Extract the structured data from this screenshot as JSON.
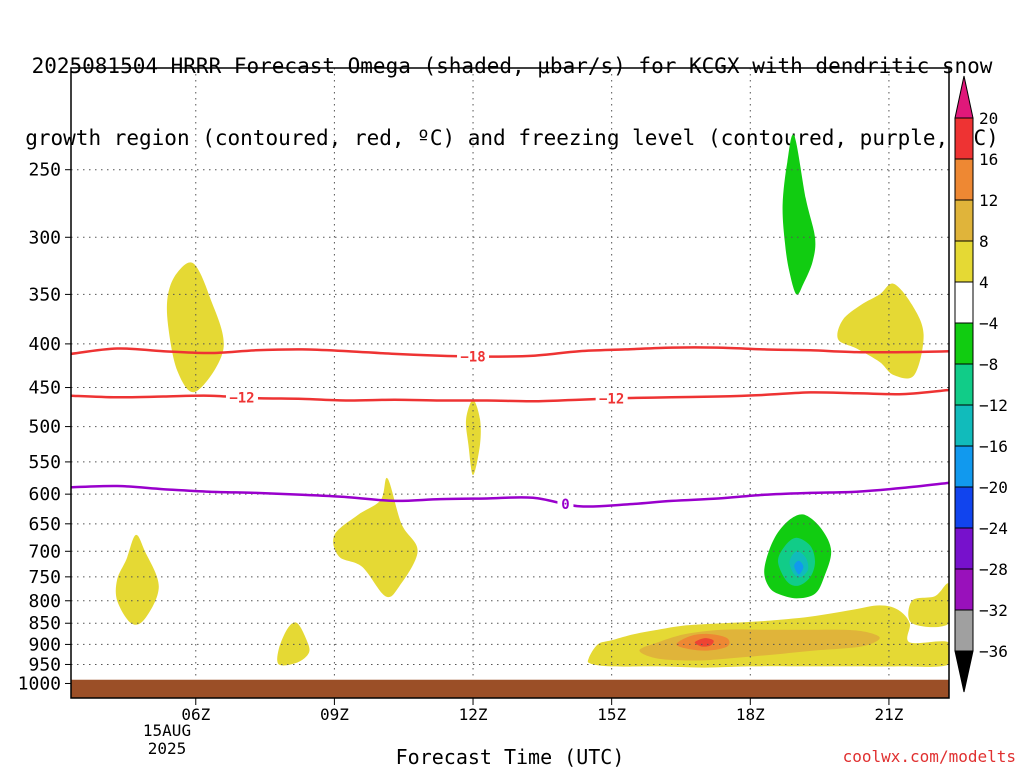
{
  "title_lines": [
    "2025081504 HRRR Forecast Omega (shaded, μbar/s) for KCGX with dendritic snow",
    "growth region (contoured, red, ºC) and freezing level (contoured, purple, ºC)"
  ],
  "watermark": "coolwx.com/modelts",
  "chart_data": {
    "type": "contour",
    "xlabel": "Forecast Time (UTC)",
    "ylabel": "",
    "date_label": [
      "15AUG",
      "2025"
    ],
    "x_range_hours_utc": [
      3.3,
      22.3
    ],
    "x_ticks": [
      {
        "hour": 6,
        "label": "06Z"
      },
      {
        "hour": 9,
        "label": "09Z"
      },
      {
        "hour": 12,
        "label": "12Z"
      },
      {
        "hour": 15,
        "label": "15Z"
      },
      {
        "hour": 18,
        "label": "18Z"
      },
      {
        "hour": 21,
        "label": "21Z"
      }
    ],
    "y_scale": "pressure (log-like, inverted)",
    "y_range_hpa": [
      1040,
      190
    ],
    "y_ticks": [
      250,
      300,
      350,
      400,
      450,
      500,
      550,
      600,
      650,
      700,
      750,
      800,
      850,
      900,
      950,
      1000
    ],
    "grid": true,
    "ground_level_hpa": 990,
    "ground_color": "#9b4f27",
    "contours": [
      {
        "name": "-18",
        "color": "#ee3333",
        "label": "-18",
        "points": [
          [
            3.3,
            411
          ],
          [
            4.3,
            405
          ],
          [
            5.3,
            408
          ],
          [
            6.3,
            410
          ],
          [
            7.3,
            407
          ],
          [
            8.3,
            406
          ],
          [
            9.3,
            408
          ],
          [
            10.3,
            411
          ],
          [
            11.3,
            413
          ],
          [
            12.3,
            414
          ],
          [
            13.3,
            413
          ],
          [
            14.3,
            408
          ],
          [
            15.3,
            406
          ],
          [
            16.3,
            404
          ],
          [
            17.3,
            404
          ],
          [
            18.3,
            406
          ],
          [
            19.3,
            407
          ],
          [
            20.3,
            409
          ],
          [
            21.3,
            409
          ],
          [
            22.3,
            408
          ]
        ],
        "label_hour": 12
      },
      {
        "name": "-12",
        "color": "#ee3333",
        "label": "-12",
        "points": [
          [
            3.3,
            460
          ],
          [
            4.3,
            462
          ],
          [
            5.3,
            461
          ],
          [
            6.3,
            460
          ],
          [
            7.3,
            463
          ],
          [
            8.3,
            464
          ],
          [
            9.3,
            466
          ],
          [
            10.3,
            465
          ],
          [
            11.3,
            466
          ],
          [
            12.3,
            466
          ],
          [
            13.3,
            467
          ],
          [
            14.3,
            465
          ],
          [
            15.3,
            463
          ],
          [
            16.3,
            462
          ],
          [
            17.3,
            461
          ],
          [
            18.3,
            459
          ],
          [
            19.3,
            456
          ],
          [
            20.3,
            457
          ],
          [
            21.3,
            458
          ],
          [
            22.3,
            453
          ]
        ],
        "label_hours": [
          7,
          15
        ]
      },
      {
        "name": "0",
        "color": "#9900cc",
        "label": "0",
        "points": [
          [
            3.3,
            589
          ],
          [
            4.3,
            587
          ],
          [
            5.3,
            592
          ],
          [
            6.3,
            596
          ],
          [
            7.3,
            598
          ],
          [
            8.3,
            601
          ],
          [
            9.3,
            605
          ],
          [
            10.3,
            611
          ],
          [
            11.3,
            608
          ],
          [
            12.3,
            607
          ],
          [
            13.3,
            606
          ],
          [
            14.3,
            620
          ],
          [
            15.3,
            617
          ],
          [
            16.3,
            611
          ],
          [
            17.3,
            607
          ],
          [
            18.3,
            601
          ],
          [
            19.3,
            598
          ],
          [
            20.3,
            596
          ],
          [
            21.3,
            590
          ],
          [
            22.3,
            582
          ]
        ],
        "label_hour": 14
      }
    ],
    "omega_regions": [
      {
        "level": 4,
        "color": "#e5d934",
        "points": [
          [
            5.4,
            350
          ],
          [
            5.6,
            330
          ],
          [
            5.95,
            322
          ],
          [
            6.3,
            352
          ],
          [
            6.6,
            405
          ],
          [
            6.0,
            455
          ],
          [
            5.6,
            430
          ],
          [
            5.4,
            380
          ]
        ]
      },
      {
        "level": 4,
        "color": "#e5d934",
        "points": [
          [
            4.3,
            755
          ],
          [
            4.5,
            715
          ],
          [
            4.7,
            670
          ],
          [
            4.9,
            700
          ],
          [
            5.2,
            770
          ],
          [
            4.9,
            840
          ],
          [
            4.6,
            850
          ],
          [
            4.3,
            800
          ]
        ]
      },
      {
        "level": 4,
        "color": "#e5d934",
        "points": [
          [
            9.0,
            670
          ],
          [
            9.5,
            635
          ],
          [
            10.0,
            610
          ],
          [
            10.15,
            575
          ],
          [
            10.45,
            650
          ],
          [
            10.8,
            700
          ],
          [
            10.4,
            770
          ],
          [
            10.1,
            790
          ],
          [
            9.6,
            730
          ],
          [
            9.1,
            710
          ]
        ]
      },
      {
        "level": 4,
        "color": "#e5d934",
        "points": [
          [
            11.85,
            490
          ],
          [
            12.0,
            465
          ],
          [
            12.15,
            490
          ],
          [
            12.15,
            525
          ],
          [
            12.0,
            570
          ],
          [
            11.9,
            525
          ]
        ]
      },
      {
        "level": 4,
        "color": "#e5d934",
        "points": [
          [
            7.8,
            910
          ],
          [
            8.0,
            860
          ],
          [
            8.2,
            850
          ],
          [
            8.4,
            890
          ],
          [
            8.45,
            920
          ],
          [
            8.2,
            945
          ],
          [
            7.8,
            950
          ]
        ]
      },
      {
        "level": 4,
        "color": "#e5d934",
        "points": [
          [
            20.0,
            375
          ],
          [
            20.4,
            360
          ],
          [
            20.8,
            350
          ],
          [
            21.1,
            340
          ],
          [
            21.5,
            360
          ],
          [
            21.75,
            390
          ],
          [
            21.55,
            435
          ],
          [
            21.1,
            435
          ],
          [
            20.8,
            420
          ],
          [
            20.3,
            405
          ],
          [
            19.9,
            395
          ]
        ]
      },
      {
        "level": 4,
        "color": "#e5d934",
        "points": [
          [
            21.5,
            800
          ],
          [
            22.0,
            790
          ],
          [
            22.3,
            765
          ],
          [
            22.3,
            850
          ],
          [
            21.5,
            850
          ]
        ]
      },
      {
        "level": 4,
        "color": "#e5d934",
        "points": [
          [
            14.5,
            935
          ],
          [
            14.7,
            900
          ],
          [
            15.0,
            890
          ],
          [
            15.5,
            875
          ],
          [
            16.0,
            865
          ],
          [
            16.6,
            855
          ],
          [
            17.4,
            850
          ],
          [
            18.3,
            845
          ],
          [
            19.3,
            835
          ],
          [
            20.2,
            820
          ],
          [
            20.8,
            810
          ],
          [
            21.2,
            820
          ],
          [
            21.45,
            850
          ],
          [
            21.45,
            895
          ],
          [
            22.3,
            895
          ],
          [
            22.3,
            950
          ],
          [
            21.2,
            955
          ],
          [
            20.2,
            955
          ],
          [
            19.0,
            955
          ],
          [
            18.0,
            955
          ],
          [
            17.0,
            958
          ],
          [
            16.0,
            955
          ],
          [
            15.0,
            955
          ],
          [
            14.55,
            948
          ]
        ]
      },
      {
        "level": 8,
        "color": "#e0b43a",
        "points": [
          [
            15.6,
            915
          ],
          [
            16.0,
            895
          ],
          [
            16.6,
            875
          ],
          [
            17.4,
            865
          ],
          [
            18.3,
            865
          ],
          [
            19.2,
            865
          ],
          [
            20.0,
            865
          ],
          [
            20.5,
            870
          ],
          [
            20.8,
            885
          ],
          [
            20.4,
            905
          ],
          [
            19.4,
            915
          ],
          [
            18.5,
            925
          ],
          [
            17.5,
            935
          ],
          [
            16.8,
            940
          ],
          [
            16.0,
            935
          ]
        ]
      },
      {
        "level": 12,
        "color": "#ee8833",
        "points": [
          [
            16.4,
            900
          ],
          [
            16.7,
            880
          ],
          [
            17.1,
            875
          ],
          [
            17.5,
            885
          ],
          [
            17.5,
            905
          ],
          [
            17.1,
            915
          ],
          [
            16.7,
            912
          ]
        ]
      },
      {
        "level": 16,
        "color": "#ee4433",
        "points": [
          [
            16.8,
            895
          ],
          [
            17.0,
            885
          ],
          [
            17.2,
            890
          ],
          [
            17.15,
            902
          ],
          [
            16.95,
            905
          ]
        ]
      },
      {
        "level": -4,
        "color": "#11cc11",
        "points": [
          [
            18.75,
            305
          ],
          [
            18.7,
            275
          ],
          [
            18.8,
            245
          ],
          [
            18.95,
            228
          ],
          [
            19.2,
            270
          ],
          [
            19.4,
            300
          ],
          [
            19.35,
            320
          ],
          [
            19.15,
            340
          ],
          [
            19.0,
            350
          ],
          [
            18.85,
            330
          ]
        ]
      },
      {
        "level": -4,
        "color": "#11cc11",
        "points": [
          [
            18.3,
            740
          ],
          [
            18.4,
            700
          ],
          [
            18.6,
            665
          ],
          [
            18.9,
            640
          ],
          [
            19.2,
            635
          ],
          [
            19.55,
            660
          ],
          [
            19.75,
            700
          ],
          [
            19.6,
            750
          ],
          [
            19.4,
            785
          ],
          [
            19.0,
            795
          ],
          [
            18.6,
            785
          ],
          [
            18.4,
            770
          ]
        ]
      },
      {
        "level": -8,
        "color": "#11cc88",
        "points": [
          [
            18.6,
            720
          ],
          [
            18.75,
            690
          ],
          [
            19.0,
            675
          ],
          [
            19.3,
            690
          ],
          [
            19.4,
            720
          ],
          [
            19.3,
            750
          ],
          [
            19.05,
            768
          ],
          [
            18.8,
            760
          ]
        ]
      },
      {
        "level": -12,
        "color": "#11bbbb",
        "points": [
          [
            18.85,
            720
          ],
          [
            19.0,
            700
          ],
          [
            19.2,
            712
          ],
          [
            19.25,
            735
          ],
          [
            19.1,
            750
          ],
          [
            18.95,
            745
          ]
        ]
      },
      {
        "level": -16,
        "color": "#1199ee",
        "points": [
          [
            18.95,
            728
          ],
          [
            19.05,
            718
          ],
          [
            19.15,
            730
          ],
          [
            19.05,
            745
          ]
        ]
      }
    ],
    "colorbar": {
      "labels": [
        "20",
        "16",
        "12",
        "8",
        "4",
        "−4",
        "−8",
        "−12",
        "−16",
        "−20",
        "−24",
        "−28",
        "−32",
        "−36"
      ],
      "colors": [
        "#e0187a",
        "#ee3333",
        "#ee8833",
        "#e0b43a",
        "#e5d934",
        "#ffffff",
        "#11cc11",
        "#11cc88",
        "#11bbbb",
        "#1199ee",
        "#1144ee",
        "#7711cc",
        "#9911bb",
        "#a0a0a0",
        "#000000"
      ]
    }
  }
}
